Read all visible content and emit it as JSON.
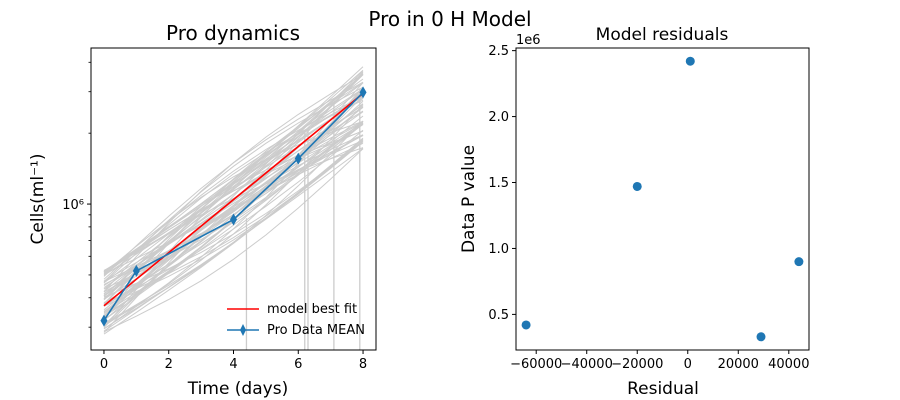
{
  "figure": {
    "suptitle": "Pro in 0 H Model"
  },
  "chart_data": [
    {
      "type": "line",
      "title": "Pro dynamics",
      "xlabel": "Time (days)",
      "ylabel": "Cells(ml⁻¹)",
      "yscale": "log",
      "xlim": [
        -0.4,
        8.4
      ],
      "ylim": [
        240000,
        4600000
      ],
      "xticks": [
        0,
        2,
        4,
        6,
        8
      ],
      "ytick_major": {
        "value": 1000000,
        "label": "10⁶"
      },
      "ytick_minor": [
        300000,
        400000,
        500000,
        600000,
        700000,
        800000,
        900000,
        2000000,
        3000000,
        4000000
      ],
      "grid": false,
      "legend": {
        "placement": "lower-right",
        "entries": [
          " model best fit",
          "Pro Data MEAN"
        ]
      },
      "series": [
        {
          "name": " model best fit",
          "color": "#ff0000",
          "x": [
            0,
            8
          ],
          "y": [
            370000,
            2950000
          ]
        },
        {
          "name": "Pro Data MEAN",
          "color": "#1f77b4",
          "marker": "thin-diamond",
          "x": [
            0,
            1,
            4,
            6,
            8
          ],
          "y": [
            320000,
            520000,
            860000,
            1560000,
            2980000
          ]
        }
      ],
      "ensemble": {
        "color": "#cccccc",
        "description": "gray simulated trajectories",
        "x": [
          0,
          1,
          2,
          3,
          4,
          5,
          6,
          7,
          8
        ],
        "y0_range": [
          280000,
          540000
        ],
        "y8_range": [
          1700000,
          3900000
        ],
        "drops": [
          {
            "x": 4.4,
            "from": 870000
          },
          {
            "x": 6.2,
            "from": 2000000
          },
          {
            "x": 6.3,
            "from": 2100000
          },
          {
            "x": 7.1,
            "from": 2700000
          },
          {
            "x": 7.9,
            "from": 3100000
          }
        ]
      }
    },
    {
      "type": "scatter",
      "title": "Model residuals",
      "xlabel": "Residual",
      "ylabel": "Data P value",
      "xlim": [
        -68000,
        48000
      ],
      "ylim": [
        230000,
        2520000
      ],
      "xticks": [
        -60000,
        -40000,
        -20000,
        0,
        20000,
        40000
      ],
      "yticks": [
        0.5,
        1.0,
        1.5,
        2.0,
        2.5
      ],
      "y_offset_label": "1e6",
      "grid": false,
      "color": "#1f77b4",
      "points": [
        {
          "x": -64000,
          "y": 420000
        },
        {
          "x": -20000,
          "y": 1470000
        },
        {
          "x": 1000,
          "y": 2420000
        },
        {
          "x": 29000,
          "y": 330000
        },
        {
          "x": 44000,
          "y": 900000
        }
      ]
    }
  ]
}
